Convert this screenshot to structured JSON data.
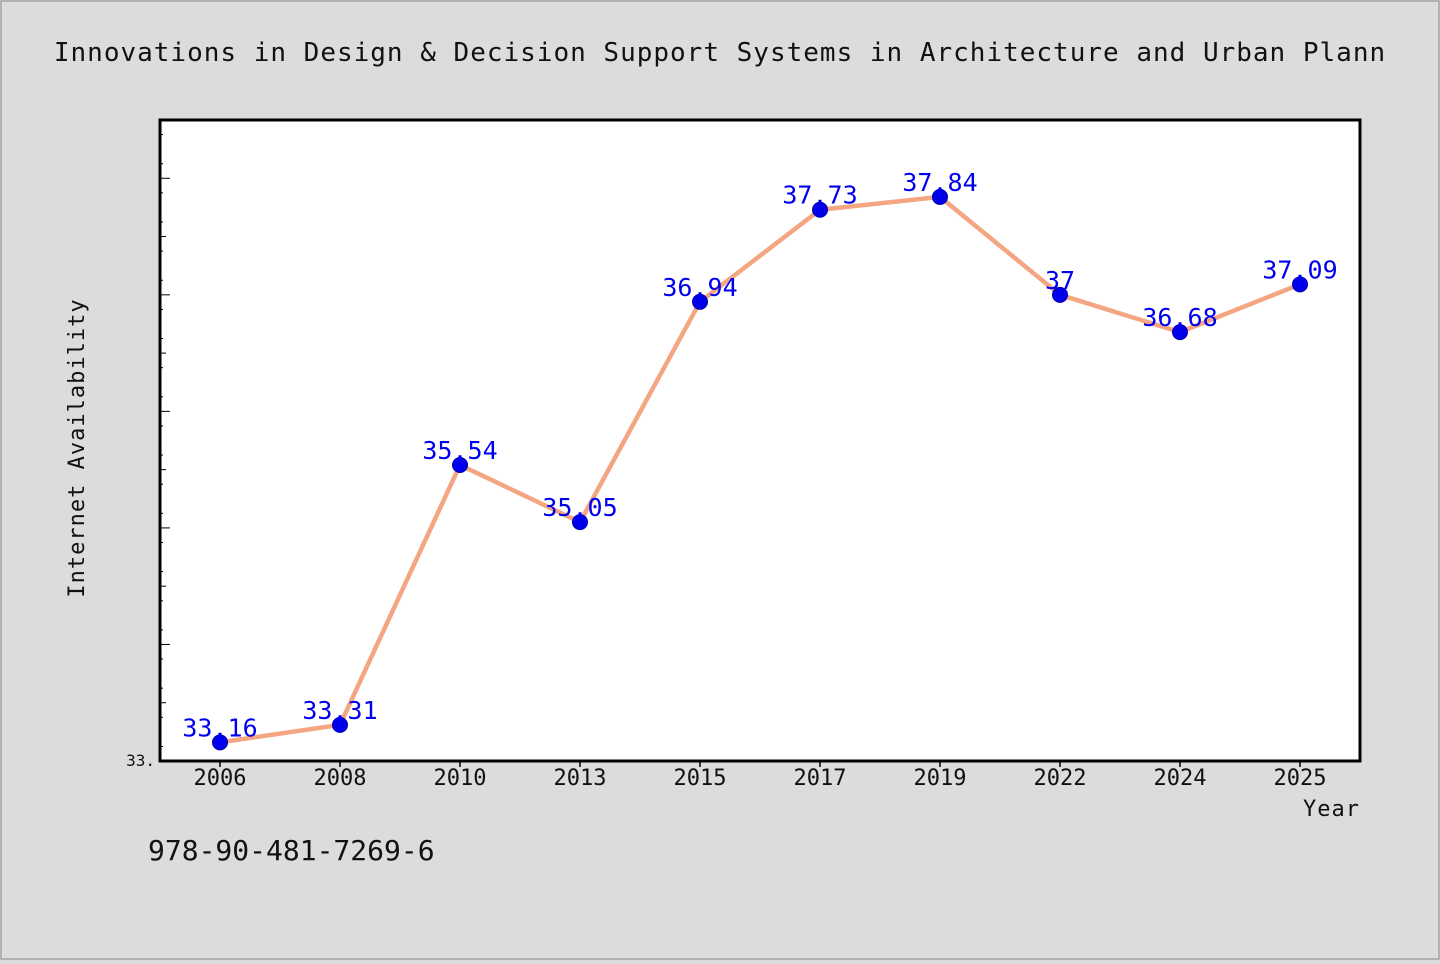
{
  "chart_data": {
    "type": "line",
    "title": "Innovations in Design & Decision Support Systems in Architecture and Urban Plann",
    "xlabel": "Year",
    "ylabel": "Internet Availability",
    "categories": [
      "2006",
      "2008",
      "2010",
      "2013",
      "2015",
      "2017",
      "2019",
      "2022",
      "2024",
      "2025"
    ],
    "series": [
      {
        "values": [
          33.16,
          33.31,
          35.54,
          35.05,
          36.94,
          37.73,
          37.84,
          37,
          36.68,
          37.09
        ],
        "labels": [
          "33.16",
          "33.31",
          "35.54",
          "35.05",
          "36.94",
          "37.73",
          "37.84",
          "37",
          "36.68",
          "37.09"
        ]
      }
    ],
    "ylim": [
      33,
      38.5
    ],
    "y_min_label": "33.",
    "grid": false,
    "legend": "none",
    "colors": {
      "line": "#f4a582",
      "marker": "#0000ee",
      "marker_edge": "#0000aa",
      "data_label": "#0000ee",
      "plot_background": "#ffffff",
      "page_background": "#dcdcdc"
    }
  },
  "footer": {
    "isbn": "978-90-481-7269-6"
  }
}
